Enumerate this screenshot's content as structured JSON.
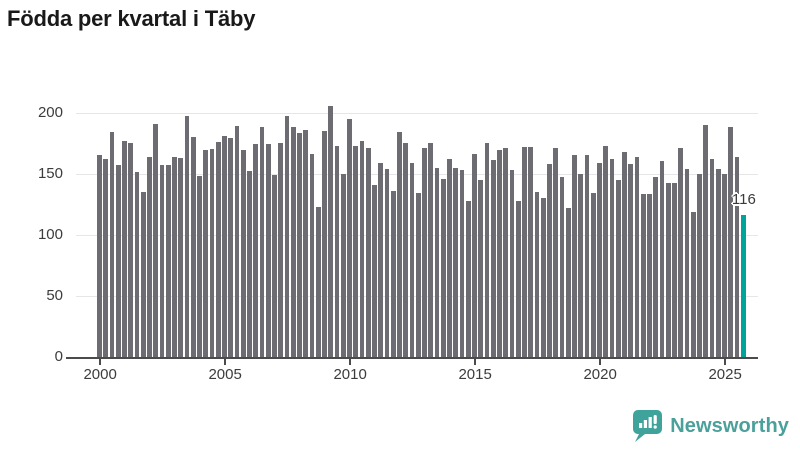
{
  "title": "Födda per kvartal i Täby",
  "chart_data": {
    "type": "bar",
    "title": "Födda per kvartal i Täby",
    "x_start": "2000",
    "x_end": "2025",
    "x_tick_labels": [
      "2000",
      "2005",
      "2010",
      "2015",
      "2020",
      "2025"
    ],
    "x_tick_bar_index": [
      1,
      21,
      41,
      61,
      81,
      101
    ],
    "y_ticks": [
      0,
      50,
      100,
      150,
      200
    ],
    "ylim": [
      0,
      210
    ],
    "grid": true,
    "legend_position": "none",
    "values": [
      165,
      162,
      184,
      157,
      177,
      175,
      151,
      135,
      164,
      191,
      157,
      157,
      164,
      163,
      197,
      180,
      148,
      169,
      170,
      176,
      181,
      179,
      189,
      169,
      152,
      174,
      188,
      174,
      149,
      175,
      197,
      188,
      183,
      186,
      166,
      123,
      185,
      205,
      173,
      150,
      195,
      173,
      177,
      171,
      141,
      159,
      154,
      136,
      184,
      175,
      159,
      134,
      171,
      175,
      155,
      146,
      162,
      155,
      153,
      128,
      166,
      145,
      175,
      161,
      169,
      171,
      153,
      128,
      172,
      172,
      135,
      130,
      158,
      171,
      147,
      122,
      165,
      150,
      165,
      134,
      159,
      173,
      162,
      145,
      168,
      158,
      164,
      133,
      133,
      147,
      160,
      142,
      142,
      171,
      154,
      119,
      150,
      190,
      162,
      154,
      150,
      188,
      164,
      116
    ],
    "highlight_last_bar": true,
    "last_value_label": "116",
    "bar_color": "#6c6c72",
    "highlight_color": "#00a49b"
  },
  "annotation": {
    "label": "116"
  },
  "branding": {
    "name": "Newsworthy",
    "icon": "newsworthy-chart-bubble-icon",
    "color": "#4aa09a"
  }
}
